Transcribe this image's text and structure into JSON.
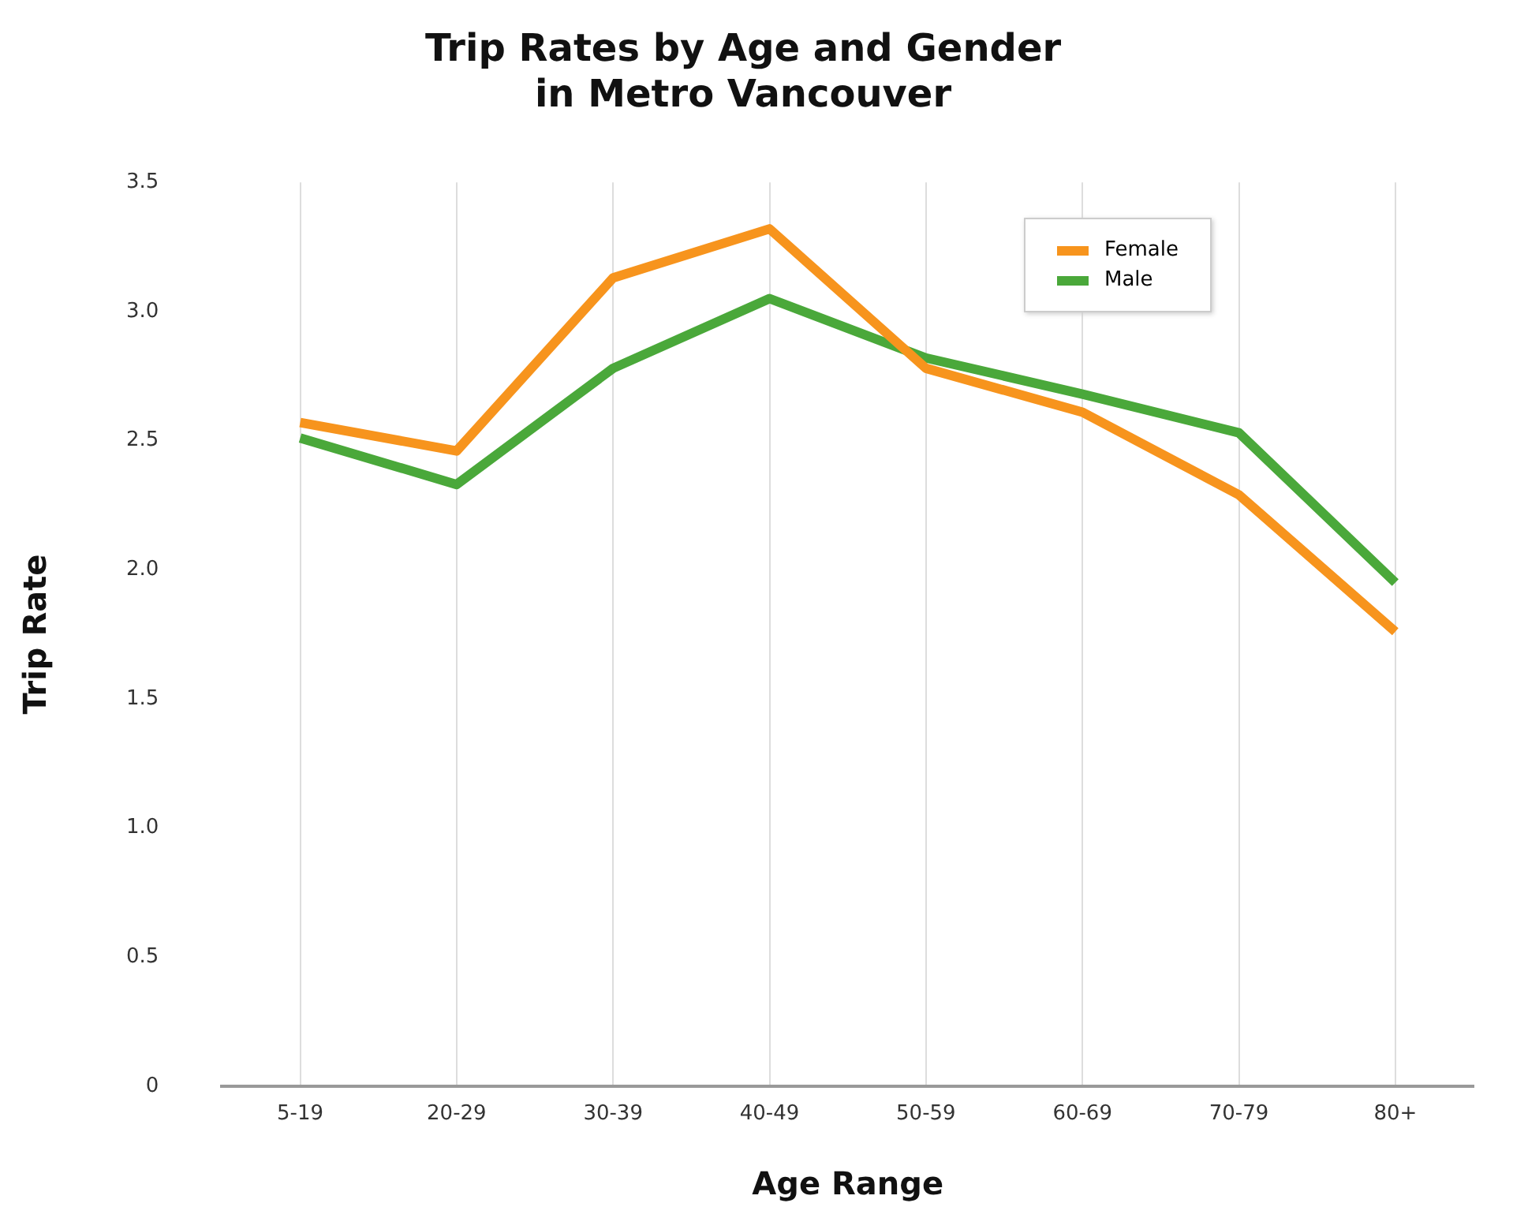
{
  "chart_data": {
    "type": "line",
    "title": "Trip Rates by Age and Gender\nin Metro Vancouver",
    "xlabel": "Age Range",
    "ylabel": "Trip Rate",
    "categories": [
      "5-19",
      "20-29",
      "30-39",
      "40-49",
      "50-59",
      "60-69",
      "70-79",
      "80+"
    ],
    "series": [
      {
        "name": "Female",
        "color": "#f7941d",
        "values": [
          2.57,
          2.46,
          3.13,
          3.32,
          2.78,
          2.61,
          2.29,
          1.76
        ]
      },
      {
        "name": "Male",
        "color": "#4aa83a",
        "values": [
          2.51,
          2.33,
          2.78,
          3.05,
          2.82,
          2.68,
          2.53,
          1.95
        ]
      }
    ],
    "ylim": [
      0,
      3.5
    ],
    "yticks": [
      0,
      {
        "value": 0.5,
        "label": "0.5"
      },
      {
        "value": 1,
        "label": "1.0"
      },
      {
        "value": 1.5,
        "label": "1.5"
      },
      {
        "value": 2,
        "label": "2.0"
      },
      {
        "value": 2.5,
        "label": "2.5"
      },
      {
        "value": 3,
        "label": "3.0"
      },
      {
        "value": 3.5,
        "label": "3.5"
      }
    ],
    "grid": "x",
    "legend": "top right",
    "marker": "none",
    "line_style": "solid"
  }
}
